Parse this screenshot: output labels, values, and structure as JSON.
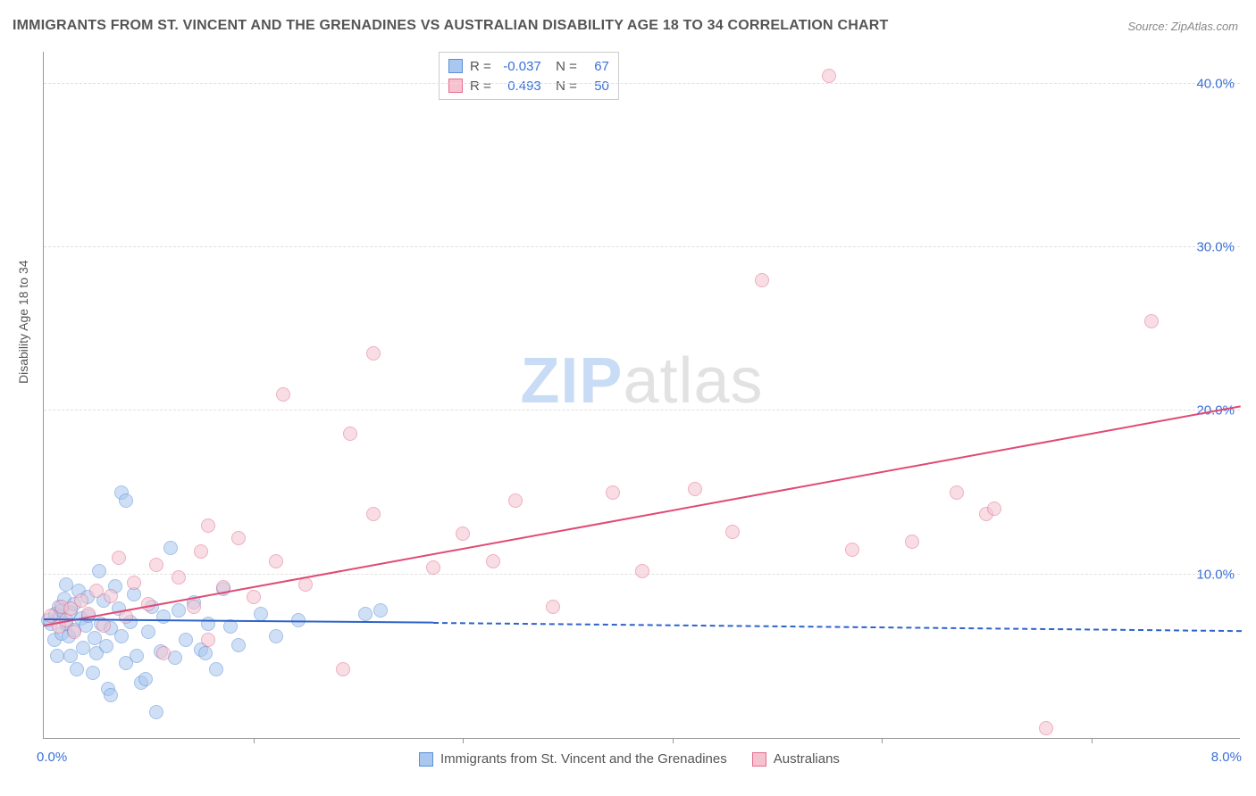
{
  "title": "IMMIGRANTS FROM ST. VINCENT AND THE GRENADINES VS AUSTRALIAN DISABILITY AGE 18 TO 34 CORRELATION CHART",
  "source_label": "Source: ZipAtlas.com",
  "ylabel": "Disability Age 18 to 34",
  "watermark": {
    "part1": "ZIP",
    "part2": "atlas"
  },
  "chart": {
    "type": "scatter",
    "background_color": "#ffffff",
    "grid_color": "#e0e0e0",
    "axis_color": "#999999",
    "text_color": "#555555",
    "value_color": "#3a6fd8",
    "xlim": [
      0,
      8
    ],
    "ylim": [
      0,
      42
    ],
    "xtick_positions": [
      0,
      1.4,
      2.8,
      4.2,
      5.6,
      7.0
    ],
    "ytick_positions": [
      10,
      20,
      30,
      40
    ],
    "ytick_labels": [
      "10.0%",
      "20.0%",
      "30.0%",
      "40.0%"
    ],
    "x_left_label": "0.0%",
    "x_right_label": "8.0%",
    "point_radius": 8,
    "point_border_width": 1,
    "title_fontsize": 16,
    "label_fontsize": 14,
    "tick_fontsize": 15
  },
  "series": [
    {
      "name": "Immigrants from St. Vincent and the Grenadines",
      "fill_color": "#a9c7ef",
      "border_color": "#5b8fd6",
      "fill_opacity": 0.55,
      "R": "-0.037",
      "N": "67",
      "regression": {
        "x1": 0.0,
        "y1": 7.2,
        "x2": 2.6,
        "y2": 7.0,
        "color": "#2e63c9",
        "width": 2
      },
      "regression_dash": {
        "x1": 2.6,
        "y1": 7.0,
        "x2": 8.0,
        "y2": 6.5,
        "color": "#2e63c9",
        "width": 2
      },
      "points": [
        [
          0.03,
          7.2
        ],
        [
          0.05,
          7.0
        ],
        [
          0.07,
          6.0
        ],
        [
          0.08,
          7.6
        ],
        [
          0.09,
          5.0
        ],
        [
          0.1,
          8.0
        ],
        [
          0.11,
          7.4
        ],
        [
          0.12,
          6.4
        ],
        [
          0.12,
          7.8
        ],
        [
          0.14,
          8.5
        ],
        [
          0.15,
          7.0
        ],
        [
          0.15,
          9.4
        ],
        [
          0.17,
          6.2
        ],
        [
          0.18,
          5.0
        ],
        [
          0.18,
          7.7
        ],
        [
          0.2,
          6.6
        ],
        [
          0.2,
          8.2
        ],
        [
          0.22,
          4.2
        ],
        [
          0.23,
          9.0
        ],
        [
          0.25,
          7.3
        ],
        [
          0.26,
          5.5
        ],
        [
          0.28,
          6.9
        ],
        [
          0.29,
          8.6
        ],
        [
          0.3,
          7.5
        ],
        [
          0.33,
          4.0
        ],
        [
          0.34,
          6.1
        ],
        [
          0.35,
          5.2
        ],
        [
          0.37,
          10.2
        ],
        [
          0.38,
          7.0
        ],
        [
          0.4,
          8.4
        ],
        [
          0.42,
          5.6
        ],
        [
          0.43,
          3.0
        ],
        [
          0.45,
          6.7
        ],
        [
          0.48,
          9.3
        ],
        [
          0.5,
          7.9
        ],
        [
          0.52,
          6.2
        ],
        [
          0.55,
          4.6
        ],
        [
          0.58,
          7.1
        ],
        [
          0.6,
          8.8
        ],
        [
          0.62,
          5.0
        ],
        [
          0.52,
          15.0
        ],
        [
          0.55,
          14.5
        ],
        [
          0.65,
          3.4
        ],
        [
          0.7,
          6.5
        ],
        [
          0.72,
          8.0
        ],
        [
          0.75,
          1.6
        ],
        [
          0.78,
          5.3
        ],
        [
          0.8,
          7.4
        ],
        [
          0.85,
          11.6
        ],
        [
          0.88,
          4.9
        ],
        [
          0.9,
          7.8
        ],
        [
          0.95,
          6.0
        ],
        [
          1.0,
          8.3
        ],
        [
          1.05,
          5.4
        ],
        [
          1.08,
          5.2
        ],
        [
          1.1,
          7.0
        ],
        [
          1.15,
          4.2
        ],
        [
          1.2,
          9.1
        ],
        [
          1.25,
          6.8
        ],
        [
          1.3,
          5.7
        ],
        [
          0.68,
          3.6
        ],
        [
          0.45,
          2.6
        ],
        [
          1.45,
          7.6
        ],
        [
          1.55,
          6.2
        ],
        [
          1.7,
          7.2
        ],
        [
          2.15,
          7.6
        ],
        [
          2.25,
          7.8
        ]
      ]
    },
    {
      "name": "Australians",
      "fill_color": "#f4c3cf",
      "border_color": "#e26d8d",
      "fill_opacity": 0.55,
      "R": "0.493",
      "N": "50",
      "regression": {
        "x1": 0.0,
        "y1": 6.8,
        "x2": 8.0,
        "y2": 20.2,
        "color": "#e04a74",
        "width": 2
      },
      "points": [
        [
          0.05,
          7.5
        ],
        [
          0.1,
          6.8
        ],
        [
          0.12,
          8.0
        ],
        [
          0.15,
          7.2
        ],
        [
          0.18,
          7.9
        ],
        [
          0.2,
          6.5
        ],
        [
          0.25,
          8.4
        ],
        [
          0.3,
          7.6
        ],
        [
          0.35,
          9.0
        ],
        [
          0.4,
          6.9
        ],
        [
          0.45,
          8.7
        ],
        [
          0.5,
          11.0
        ],
        [
          0.55,
          7.4
        ],
        [
          0.6,
          9.5
        ],
        [
          0.7,
          8.2
        ],
        [
          0.75,
          10.6
        ],
        [
          0.8,
          5.2
        ],
        [
          0.9,
          9.8
        ],
        [
          1.0,
          8.0
        ],
        [
          1.05,
          11.4
        ],
        [
          1.1,
          6.0
        ],
        [
          1.2,
          9.2
        ],
        [
          1.3,
          12.2
        ],
        [
          1.4,
          8.6
        ],
        [
          1.1,
          13.0
        ],
        [
          1.55,
          10.8
        ],
        [
          1.6,
          21.0
        ],
        [
          1.75,
          9.4
        ],
        [
          2.05,
          18.6
        ],
        [
          2.0,
          4.2
        ],
        [
          2.2,
          13.7
        ],
        [
          2.2,
          23.5
        ],
        [
          2.6,
          10.4
        ],
        [
          2.8,
          12.5
        ],
        [
          3.0,
          10.8
        ],
        [
          3.15,
          14.5
        ],
        [
          3.4,
          8.0
        ],
        [
          3.8,
          15.0
        ],
        [
          4.0,
          10.2
        ],
        [
          4.35,
          15.2
        ],
        [
          4.6,
          12.6
        ],
        [
          4.8,
          28.0
        ],
        [
          5.25,
          40.5
        ],
        [
          5.4,
          11.5
        ],
        [
          5.8,
          12.0
        ],
        [
          6.1,
          15.0
        ],
        [
          6.3,
          13.7
        ],
        [
          6.35,
          14.0
        ],
        [
          6.7,
          0.6
        ],
        [
          7.4,
          25.5
        ]
      ]
    }
  ],
  "legend_bottom": {
    "items": [
      {
        "label": "Immigrants from St. Vincent and the Grenadines",
        "fill": "#a9c7ef",
        "border": "#5b8fd6"
      },
      {
        "label": "Australians",
        "fill": "#f4c3cf",
        "border": "#e26d8d"
      }
    ]
  }
}
